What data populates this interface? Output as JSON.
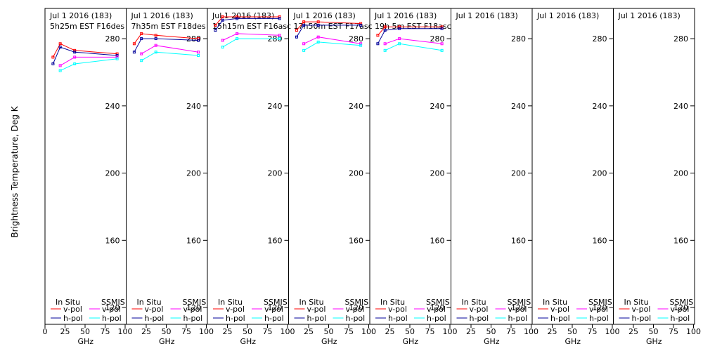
{
  "chart_data": {
    "type": "line",
    "ylabel": "Brightness Temperature, Deg K",
    "xlabel": "GHz",
    "xlim": [
      0,
      100
    ],
    "ylim": [
      110,
      298
    ],
    "yticks": [
      120,
      160,
      200,
      240,
      280
    ],
    "xticks": [
      "0",
      "25",
      "50",
      "75",
      "100"
    ],
    "xticks_inner": [
      "25",
      "50",
      "75",
      "100"
    ],
    "x_freq": [
      10,
      19,
      37,
      90
    ],
    "legend": {
      "in_situ_heading": "In Situ",
      "ssmis_heading": "SSMIS",
      "v_label": "v-pol",
      "h_label": "h-pol"
    },
    "colors": {
      "insitu_v": "#ff0000",
      "insitu_h": "#000099",
      "ssmis_v": "#ff00ff",
      "ssmis_h": "#00ffff",
      "axis": "#000000"
    },
    "panels": [
      {
        "date": "Jul 1 2016 (183)",
        "overpass": "5h25m EST F16des",
        "series": {
          "insitu_v": [
            [
              10,
              269
            ],
            [
              19,
              277
            ],
            [
              37,
              273
            ],
            [
              90,
              271
            ]
          ],
          "insitu_h": [
            [
              10,
              265
            ],
            [
              19,
              275
            ],
            [
              37,
              272
            ],
            [
              90,
              270
            ]
          ],
          "ssmis_v": [
            [
              19,
              264
            ],
            [
              37,
              269
            ],
            [
              90,
              269
            ]
          ],
          "ssmis_h": [
            [
              19,
              261
            ],
            [
              37,
              265
            ],
            [
              90,
              268
            ]
          ]
        }
      },
      {
        "date": "Jul 1 2016 (183)",
        "overpass": "7h35m EST F18des",
        "series": {
          "insitu_v": [
            [
              10,
              277
            ],
            [
              19,
              283
            ],
            [
              37,
              282
            ],
            [
              90,
              280
            ]
          ],
          "insitu_h": [
            [
              10,
              272
            ],
            [
              19,
              280
            ],
            [
              37,
              280
            ],
            [
              90,
              279
            ]
          ],
          "ssmis_v": [
            [
              19,
              271
            ],
            [
              37,
              276
            ],
            [
              90,
              272
            ]
          ],
          "ssmis_h": [
            [
              19,
              267
            ],
            [
              37,
              272
            ],
            [
              90,
              270
            ]
          ]
        }
      },
      {
        "date": "Jul 1 2016 (183)",
        "overpass": "15h15m EST F16asc",
        "series": {
          "insitu_v": [
            [
              10,
              288
            ],
            [
              19,
              293
            ],
            [
              37,
              293
            ],
            [
              90,
              293
            ]
          ],
          "insitu_h": [
            [
              10,
              285
            ],
            [
              19,
              291
            ],
            [
              37,
              292
            ],
            [
              90,
              292
            ]
          ],
          "ssmis_v": [
            [
              19,
              279
            ],
            [
              37,
              283
            ],
            [
              90,
              282
            ]
          ],
          "ssmis_h": [
            [
              19,
              275
            ],
            [
              37,
              280
            ],
            [
              90,
              280
            ]
          ]
        }
      },
      {
        "date": "Jul 1 2016 (183)",
        "overpass": "17h50m EST F17asc",
        "series": {
          "insitu_v": [
            [
              10,
              285
            ],
            [
              19,
              290
            ],
            [
              37,
              290
            ],
            [
              90,
              289
            ]
          ],
          "insitu_h": [
            [
              10,
              281
            ],
            [
              19,
              288
            ],
            [
              37,
              288
            ],
            [
              90,
              288
            ]
          ],
          "ssmis_v": [
            [
              19,
              277
            ],
            [
              37,
              281
            ],
            [
              90,
              277
            ]
          ],
          "ssmis_h": [
            [
              19,
              273
            ],
            [
              37,
              278
            ],
            [
              90,
              276
            ]
          ]
        }
      },
      {
        "date": "Jul 1 2016 (183)",
        "overpass": "19h 5m EST F18asc",
        "series": {
          "insitu_v": [
            [
              10,
              282
            ],
            [
              19,
              287
            ],
            [
              37,
              287
            ],
            [
              90,
              287
            ]
          ],
          "insitu_h": [
            [
              10,
              277
            ],
            [
              19,
              285
            ],
            [
              37,
              286
            ],
            [
              90,
              286
            ]
          ],
          "ssmis_v": [
            [
              19,
              277
            ],
            [
              37,
              280
            ],
            [
              90,
              277
            ]
          ],
          "ssmis_h": [
            [
              19,
              273
            ],
            [
              37,
              277
            ],
            [
              90,
              273
            ]
          ]
        }
      },
      {
        "date": "Jul 1 2016 (183)",
        "overpass": "",
        "series": {}
      },
      {
        "date": "Jul 1 2016 (183)",
        "overpass": "",
        "series": {}
      },
      {
        "date": "Jul 1 2016 (183)",
        "overpass": "",
        "series": {}
      }
    ]
  }
}
